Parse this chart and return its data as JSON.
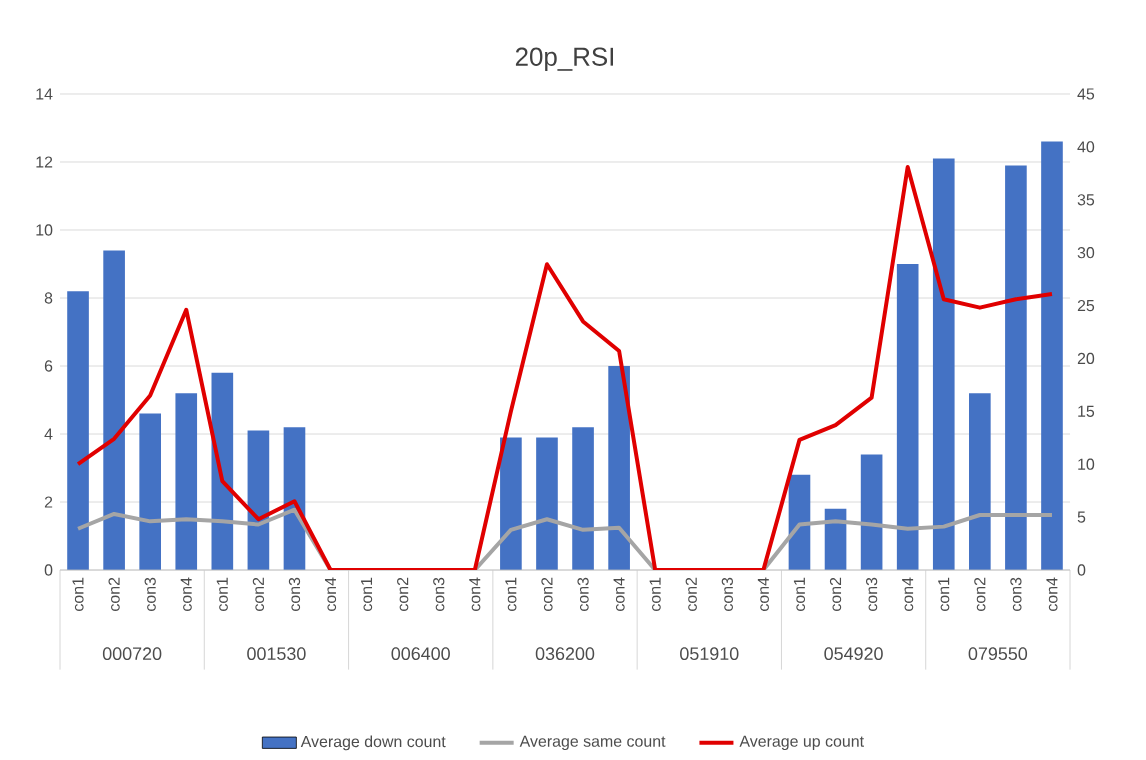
{
  "chart_data": {
    "type": "bar",
    "title": "20p_RSI",
    "categories": [
      "con1",
      "con2",
      "con3",
      "con4",
      "con1",
      "con2",
      "con3",
      "con4",
      "con1",
      "con2",
      "con3",
      "con4",
      "con1",
      "con2",
      "con3",
      "con4",
      "con1",
      "con2",
      "con3",
      "con4",
      "con1",
      "con2",
      "con3",
      "con4",
      "con1",
      "con2",
      "con3",
      "con4"
    ],
    "annotations": [
      "000720",
      "001530",
      "006400",
      "036200",
      "051910",
      "054920",
      "079550"
    ],
    "series": [
      {
        "name": "Average down count",
        "color": "#4472c4",
        "values": [
          8.2,
          9.4,
          4.6,
          5.2,
          5.8,
          4.1,
          4.2,
          0,
          0,
          0,
          0,
          0,
          3.9,
          3.9,
          4.2,
          6.0,
          0,
          0,
          0,
          0,
          2.8,
          1.8,
          3.4,
          9.0,
          12.1,
          5.2,
          11.9,
          12.6
        ]
      },
      {
        "name": "Average same count",
        "type": "line",
        "axis": "y2",
        "color": "#a5a5a5",
        "values": [
          3.9,
          5.3,
          4.6,
          4.8,
          4.6,
          4.3,
          5.7,
          0,
          0,
          0,
          0,
          0,
          3.8,
          4.8,
          3.8,
          4.0,
          0,
          0,
          0,
          0,
          4.3,
          4.6,
          4.3,
          3.9,
          4.1,
          5.2,
          5.2,
          5.2
        ]
      },
      {
        "name": "Average up count",
        "type": "line",
        "axis": "y2",
        "color": "#e00000",
        "values": [
          10.0,
          12.4,
          16.5,
          24.6,
          8.4,
          4.8,
          6.5,
          0,
          0,
          0,
          0,
          0,
          15.0,
          28.9,
          23.5,
          20.7,
          0,
          0,
          0,
          0,
          12.3,
          13.7,
          16.3,
          38.1,
          25.6,
          24.8,
          25.6,
          26.1
        ]
      }
    ],
    "ylim": [
      0,
      14
    ],
    "yticks": [
      0,
      2,
      4,
      6,
      8,
      10,
      12,
      14
    ],
    "y2lim": [
      0,
      45
    ],
    "y2ticks": [
      0,
      5,
      10,
      15,
      20,
      25,
      30,
      35,
      40,
      45
    ],
    "grid": "y",
    "legend": "bottom",
    "marker": "none"
  }
}
